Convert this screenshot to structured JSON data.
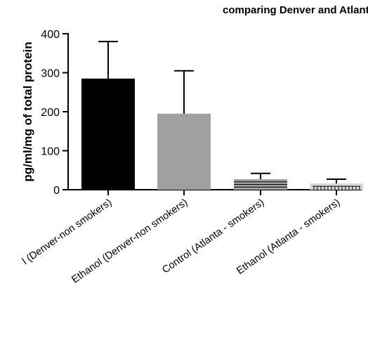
{
  "chart_data": {
    "type": "bar",
    "title": "comparing Denver and Atlanta cent",
    "xlabel": "",
    "ylabel": "pg/ml/mg of total protein",
    "ylim": [
      0,
      400
    ],
    "yticks": [
      "0",
      "100",
      "200",
      "300",
      "400"
    ],
    "categories": [
      "l (Denver-non smokers)",
      "Ethanol (Denver-non smokers)",
      "Control (Atlanta - smokers)",
      "Ethanol (Atlanta - smokers)"
    ],
    "values": [
      285,
      195,
      27,
      16
    ],
    "errors": [
      95,
      110,
      15,
      11
    ],
    "bar_colors": [
      "#000000",
      "#a0a0a2",
      "#a0a0a2",
      "#d8d8d8"
    ],
    "bar_patterns": [
      "solid",
      "solid",
      "horizontal-lines",
      "vertical-ticks"
    ],
    "grid": false,
    "legend": "none"
  }
}
